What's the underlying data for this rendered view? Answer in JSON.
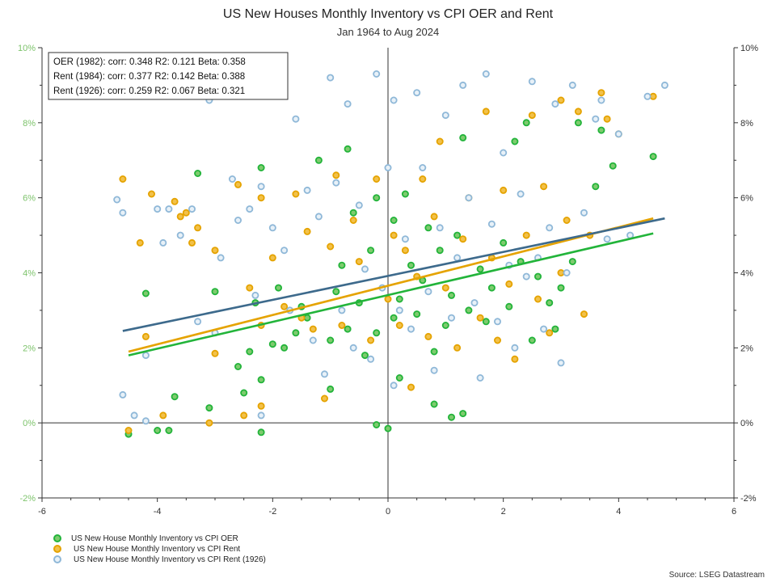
{
  "chart_data": {
    "type": "scatter",
    "title": "US New Houses Monthly Inventory vs CPI OER and Rent",
    "subtitle": "Jan 1964 to Aug 2024",
    "xlim": [
      -6,
      6
    ],
    "ylim": [
      -2,
      10
    ],
    "x_ticks": [
      "-6",
      "-4",
      "-2",
      "0",
      "2",
      "4",
      "6"
    ],
    "y_ticks_left": [
      "-2%",
      "0%",
      "2%",
      "4%",
      "6%",
      "8%",
      "10%"
    ],
    "y_ticks_right": [
      "-2%",
      "0%",
      "2%",
      "4%",
      "6%",
      "8%",
      "10%"
    ],
    "grid": false,
    "legend_position": "bottom-left",
    "stats_box": [
      "OER (1982): corr: 0.348  R2: 0.121  Beta: 0.358",
      "Rent (1984): corr: 0.377  R2: 0.142  Beta: 0.388",
      "Rent (1926): corr: 0.259  R2: 0.067  Beta: 0.321"
    ],
    "source": "Source: LSEG Datastream",
    "series": [
      {
        "name": "US New House Monthly Inventory vs CPI OER",
        "color": "#22b43a",
        "fill": "#7ecb6e",
        "trend": {
          "x": [
            -4.5,
            4.6
          ],
          "y": [
            1.8,
            5.05
          ]
        },
        "points": [
          [
            -4.5,
            -0.3
          ],
          [
            -4.2,
            3.45
          ],
          [
            -4.0,
            -0.2
          ],
          [
            -3.8,
            -0.2
          ],
          [
            -3.7,
            0.7
          ],
          [
            -3.3,
            6.65
          ],
          [
            -3.1,
            0.4
          ],
          [
            -3.0,
            3.5
          ],
          [
            -2.6,
            1.5
          ],
          [
            -2.5,
            0.8
          ],
          [
            -2.4,
            1.9
          ],
          [
            -2.3,
            3.2
          ],
          [
            -2.2,
            1.15
          ],
          [
            -2.2,
            -0.25
          ],
          [
            -2.2,
            6.8
          ],
          [
            -2.0,
            2.1
          ],
          [
            -1.9,
            3.6
          ],
          [
            -1.8,
            2.0
          ],
          [
            -1.6,
            2.4
          ],
          [
            -1.5,
            3.1
          ],
          [
            -1.4,
            2.8
          ],
          [
            -1.2,
            7.0
          ],
          [
            -1.0,
            2.2
          ],
          [
            -1.0,
            0.9
          ],
          [
            -0.9,
            3.5
          ],
          [
            -0.8,
            4.2
          ],
          [
            -0.7,
            2.5
          ],
          [
            -0.7,
            7.3
          ],
          [
            -0.6,
            5.6
          ],
          [
            -0.5,
            3.2
          ],
          [
            -0.4,
            1.8
          ],
          [
            -0.3,
            4.6
          ],
          [
            -0.2,
            6.0
          ],
          [
            -0.2,
            2.4
          ],
          [
            -0.2,
            -0.05
          ],
          [
            0.0,
            -0.15
          ],
          [
            0.1,
            2.8
          ],
          [
            0.1,
            5.4
          ],
          [
            0.2,
            3.3
          ],
          [
            0.2,
            1.2
          ],
          [
            0.3,
            6.1
          ],
          [
            0.4,
            4.2
          ],
          [
            0.5,
            2.9
          ],
          [
            0.6,
            3.8
          ],
          [
            0.7,
            5.2
          ],
          [
            0.8,
            1.9
          ],
          [
            0.8,
            0.5
          ],
          [
            0.9,
            4.6
          ],
          [
            1.0,
            2.6
          ],
          [
            1.1,
            0.15
          ],
          [
            1.1,
            3.4
          ],
          [
            1.2,
            5.0
          ],
          [
            1.3,
            7.6
          ],
          [
            1.3,
            0.25
          ],
          [
            1.4,
            3.0
          ],
          [
            1.6,
            4.1
          ],
          [
            1.7,
            2.7
          ],
          [
            1.8,
            3.6
          ],
          [
            2.0,
            4.8
          ],
          [
            2.1,
            3.1
          ],
          [
            2.2,
            7.5
          ],
          [
            2.3,
            4.3
          ],
          [
            2.4,
            8.0
          ],
          [
            2.5,
            2.2
          ],
          [
            2.6,
            3.9
          ],
          [
            2.8,
            3.2
          ],
          [
            2.9,
            2.5
          ],
          [
            3.0,
            3.6
          ],
          [
            3.2,
            4.3
          ],
          [
            3.3,
            8.0
          ],
          [
            3.6,
            6.3
          ],
          [
            3.7,
            7.8
          ],
          [
            3.9,
            6.85
          ],
          [
            4.6,
            7.1
          ]
        ]
      },
      {
        "name": "US New House Monthly Inventory vs CPI Rent",
        "color": "#e5a300",
        "fill": "#f2c14a",
        "trend": {
          "x": [
            -4.5,
            4.6
          ],
          "y": [
            1.9,
            5.45
          ]
        },
        "points": [
          [
            -4.6,
            6.5
          ],
          [
            -4.5,
            -0.2
          ],
          [
            -4.3,
            4.8
          ],
          [
            -4.2,
            2.3
          ],
          [
            -4.1,
            6.1
          ],
          [
            -3.9,
            0.2
          ],
          [
            -3.7,
            5.9
          ],
          [
            -3.6,
            5.5
          ],
          [
            -3.5,
            5.6
          ],
          [
            -3.4,
            4.8
          ],
          [
            -3.3,
            5.2
          ],
          [
            -3.1,
            0.0
          ],
          [
            -3.0,
            4.6
          ],
          [
            -3.0,
            1.85
          ],
          [
            -2.6,
            6.35
          ],
          [
            -2.5,
            0.2
          ],
          [
            -2.4,
            3.6
          ],
          [
            -2.2,
            2.6
          ],
          [
            -2.2,
            0.45
          ],
          [
            -2.2,
            6.0
          ],
          [
            -2.0,
            4.4
          ],
          [
            -1.8,
            3.1
          ],
          [
            -1.6,
            6.1
          ],
          [
            -1.5,
            2.8
          ],
          [
            -1.4,
            5.1
          ],
          [
            -1.3,
            2.5
          ],
          [
            -1.1,
            0.65
          ],
          [
            -1.0,
            4.7
          ],
          [
            -0.9,
            6.6
          ],
          [
            -0.8,
            2.6
          ],
          [
            -0.6,
            5.4
          ],
          [
            -0.5,
            4.3
          ],
          [
            -0.3,
            2.2
          ],
          [
            -0.2,
            6.5
          ],
          [
            0.0,
            3.3
          ],
          [
            0.1,
            5.0
          ],
          [
            0.2,
            2.6
          ],
          [
            0.3,
            4.6
          ],
          [
            0.4,
            0.95
          ],
          [
            0.5,
            3.9
          ],
          [
            0.6,
            6.5
          ],
          [
            0.7,
            2.3
          ],
          [
            0.8,
            5.5
          ],
          [
            0.9,
            7.5
          ],
          [
            1.0,
            3.6
          ],
          [
            1.2,
            2.0
          ],
          [
            1.3,
            4.9
          ],
          [
            1.4,
            6.0
          ],
          [
            1.6,
            2.8
          ],
          [
            1.7,
            8.3
          ],
          [
            1.8,
            4.4
          ],
          [
            1.9,
            2.2
          ],
          [
            2.0,
            6.2
          ],
          [
            2.1,
            3.7
          ],
          [
            2.2,
            1.7
          ],
          [
            2.4,
            5.0
          ],
          [
            2.5,
            8.2
          ],
          [
            2.6,
            3.3
          ],
          [
            2.7,
            6.3
          ],
          [
            2.8,
            2.4
          ],
          [
            3.0,
            4.0
          ],
          [
            3.0,
            8.6
          ],
          [
            3.1,
            5.4
          ],
          [
            3.3,
            8.3
          ],
          [
            3.4,
            2.9
          ],
          [
            3.5,
            5.0
          ],
          [
            3.7,
            8.8
          ],
          [
            3.8,
            8.1
          ],
          [
            4.0,
            7.7
          ],
          [
            4.6,
            8.7
          ]
        ]
      },
      {
        "name": "US New House Monthly Inventory vs CPI Rent (1926)",
        "color": "#8fb8d8",
        "fill": "#e8f1f8",
        "trend": {
          "x": [
            -4.6,
            4.8
          ],
          "y": [
            2.45,
            5.45
          ]
        },
        "points": [
          [
            -4.7,
            5.95
          ],
          [
            -4.6,
            5.6
          ],
          [
            -4.6,
            0.75
          ],
          [
            -4.4,
            0.2
          ],
          [
            -4.2,
            1.8
          ],
          [
            -4.2,
            0.05
          ],
          [
            -4.0,
            5.7
          ],
          [
            -3.9,
            4.8
          ],
          [
            -3.8,
            5.7
          ],
          [
            -3.6,
            5.0
          ],
          [
            -3.4,
            5.7
          ],
          [
            -3.3,
            2.7
          ],
          [
            -3.1,
            8.6
          ],
          [
            -3.0,
            2.4
          ],
          [
            -2.9,
            4.4
          ],
          [
            -2.7,
            6.5
          ],
          [
            -2.6,
            5.4
          ],
          [
            -2.4,
            5.7
          ],
          [
            -2.3,
            3.4
          ],
          [
            -2.2,
            0.2
          ],
          [
            -2.2,
            6.3
          ],
          [
            -2.0,
            5.2
          ],
          [
            -1.8,
            4.6
          ],
          [
            -1.7,
            3.0
          ],
          [
            -1.6,
            8.1
          ],
          [
            -1.4,
            6.2
          ],
          [
            -1.3,
            2.2
          ],
          [
            -1.2,
            5.5
          ],
          [
            -1.1,
            1.3
          ],
          [
            -1.0,
            9.2
          ],
          [
            -0.9,
            6.4
          ],
          [
            -0.8,
            3.0
          ],
          [
            -0.7,
            8.5
          ],
          [
            -0.6,
            2.0
          ],
          [
            -0.5,
            5.8
          ],
          [
            -0.4,
            4.1
          ],
          [
            -0.3,
            1.7
          ],
          [
            -0.2,
            9.3
          ],
          [
            -0.1,
            3.6
          ],
          [
            0.0,
            6.8
          ],
          [
            0.1,
            8.6
          ],
          [
            0.1,
            1.0
          ],
          [
            0.2,
            3.0
          ],
          [
            0.3,
            4.9
          ],
          [
            0.4,
            2.5
          ],
          [
            0.5,
            8.8
          ],
          [
            0.6,
            6.8
          ],
          [
            0.7,
            3.5
          ],
          [
            0.8,
            1.4
          ],
          [
            0.9,
            5.2
          ],
          [
            1.0,
            8.2
          ],
          [
            1.1,
            2.8
          ],
          [
            1.2,
            4.4
          ],
          [
            1.3,
            9.0
          ],
          [
            1.4,
            6.0
          ],
          [
            1.5,
            3.2
          ],
          [
            1.6,
            1.2
          ],
          [
            1.7,
            9.3
          ],
          [
            1.8,
            5.3
          ],
          [
            1.9,
            2.7
          ],
          [
            2.0,
            7.2
          ],
          [
            2.1,
            4.2
          ],
          [
            2.2,
            2.0
          ],
          [
            2.3,
            6.1
          ],
          [
            2.4,
            3.9
          ],
          [
            2.5,
            9.1
          ],
          [
            2.6,
            4.4
          ],
          [
            2.7,
            2.5
          ],
          [
            2.8,
            5.2
          ],
          [
            2.9,
            8.5
          ],
          [
            3.0,
            1.6
          ],
          [
            3.1,
            4.0
          ],
          [
            3.2,
            9.0
          ],
          [
            3.4,
            5.6
          ],
          [
            3.6,
            8.1
          ],
          [
            3.7,
            8.6
          ],
          [
            3.8,
            4.9
          ],
          [
            4.0,
            7.7
          ],
          [
            4.2,
            5.0
          ],
          [
            4.5,
            8.7
          ],
          [
            4.8,
            9.0
          ]
        ]
      }
    ]
  }
}
